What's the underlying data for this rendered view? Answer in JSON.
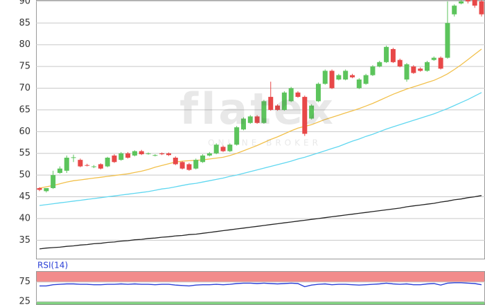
{
  "chart_data": [
    {
      "type": "candlestick",
      "categories": [
        null,
        null,
        null,
        null,
        null,
        null,
        null,
        null,
        null,
        null,
        null,
        null,
        null,
        null,
        null,
        null,
        null,
        null,
        null,
        null,
        null,
        null,
        null,
        null,
        null,
        null,
        null,
        null,
        null,
        null,
        null,
        null,
        null,
        null,
        null,
        null,
        null,
        null,
        null,
        null,
        null,
        null,
        null,
        null,
        null,
        null,
        null,
        null,
        null,
        null,
        null,
        null,
        null,
        null,
        null,
        null,
        null,
        null,
        null,
        null,
        null,
        null,
        null,
        null,
        null,
        null
      ],
      "open": [
        47,
        46.3,
        47,
        50.5,
        51,
        54,
        53.5,
        52.3,
        52,
        52.5,
        52,
        54.5,
        53.5,
        55,
        54.5,
        55.5,
        55,
        54.5,
        55,
        55,
        54,
        53,
        52.5,
        51.5,
        53,
        54.5,
        55,
        56.5,
        55.5,
        57,
        60.5,
        62,
        63.5,
        62,
        68,
        66,
        65,
        67,
        69,
        68,
        63,
        67,
        71,
        74,
        72,
        72,
        73,
        70,
        71,
        73,
        75,
        76,
        79,
        76.5,
        72,
        75,
        74.5,
        74,
        76.5,
        77,
        77,
        87,
        89.5,
        90.3,
        90.3,
        90
      ],
      "high": [
        47.2,
        47,
        51,
        52,
        54.5,
        54.7,
        53.8,
        52.6,
        52.3,
        52.7,
        54.2,
        54.8,
        55.3,
        55.3,
        55.7,
        55.8,
        55.2,
        54.8,
        55.2,
        55.2,
        54.3,
        53.2,
        52.8,
        53.8,
        54.8,
        55.3,
        57.3,
        56.8,
        57.3,
        61.3,
        63.3,
        63.8,
        63.8,
        67.3,
        71.5,
        66.3,
        69.3,
        70.3,
        69.3,
        68.3,
        66.3,
        71.3,
        74.3,
        74.3,
        73.3,
        74.3,
        73.3,
        72.3,
        73.3,
        75.3,
        76.3,
        79.8,
        79.3,
        76.8,
        75.8,
        75.3,
        74.8,
        76.3,
        77.3,
        77.3,
        90,
        89.3,
        90.3,
        90.5,
        90.5,
        90.3
      ],
      "low": [
        46.3,
        46,
        46.8,
        50.3,
        50.5,
        53,
        51.8,
        52,
        51.6,
        51.3,
        51.8,
        52.8,
        53.3,
        53.8,
        54.3,
        54.6,
        54.7,
        54.3,
        54.6,
        54.4,
        52.3,
        51.3,
        51,
        51.3,
        52.8,
        54.3,
        54.8,
        55.3,
        55.3,
        56.8,
        60.3,
        61.8,
        61.8,
        61.8,
        64.8,
        64.8,
        64.8,
        66.8,
        67.8,
        59,
        62.8,
        66.8,
        70.8,
        69.8,
        71.8,
        71.8,
        72.3,
        69.8,
        70.8,
        72.8,
        74.8,
        75.8,
        75.8,
        74.8,
        71.5,
        73.3,
        73.8,
        73.8,
        76.3,
        74.3,
        76.8,
        86.5,
        89.3,
        89.5,
        88.5,
        86.5
      ],
      "close": [
        46.6,
        47,
        50,
        51.5,
        54,
        54.1,
        52,
        52.2,
        52,
        51.5,
        54,
        53,
        55,
        54,
        55.5,
        54.8,
        55,
        54.6,
        54.8,
        54.6,
        52.5,
        51.5,
        51.2,
        53.5,
        54.5,
        55,
        57,
        55.5,
        57,
        61,
        63,
        63.5,
        62,
        67,
        65,
        65,
        69,
        70,
        68,
        59.5,
        66,
        71,
        74,
        70,
        73,
        74,
        72.5,
        72,
        73,
        75,
        76,
        79.5,
        76,
        75,
        75.5,
        73.5,
        74,
        76,
        77,
        74.5,
        85,
        89,
        90,
        90,
        89,
        87
      ],
      "up_color": "#5cc45c",
      "down_color": "#e84848",
      "lines": [
        {
          "color": "#f2c04a",
          "values": [
            47.0,
            47.3,
            47.6,
            48.0,
            48.4,
            48.7,
            48.9,
            49.1,
            49.3,
            49.5,
            49.7,
            49.9,
            50.1,
            50.3,
            50.6,
            50.9,
            51.3,
            51.8,
            52.2,
            52.6,
            53.0,
            53.2,
            53.3,
            53.4,
            53.5,
            53.7,
            53.9,
            54.1,
            54.5,
            55.0,
            55.6,
            56.2,
            56.8,
            57.5,
            58.2,
            58.8,
            59.5,
            60.2,
            60.8,
            61.2,
            61.6,
            62.2,
            62.8,
            63.3,
            63.8,
            64.3,
            64.8,
            65.3,
            65.9,
            66.5,
            67.2,
            67.9,
            68.6,
            69.2,
            69.8,
            70.3,
            70.8,
            71.3,
            71.8,
            72.5,
            73.3,
            74.3,
            75.4,
            76.6,
            77.8,
            79.0
          ]
        },
        {
          "color": "#5fd7f0",
          "values": [
            43.0,
            43.2,
            43.4,
            43.6,
            43.8,
            44.0,
            44.2,
            44.4,
            44.6,
            44.8,
            45.0,
            45.2,
            45.4,
            45.6,
            45.8,
            46.0,
            46.2,
            46.5,
            46.8,
            47.0,
            47.3,
            47.6,
            47.9,
            48.1,
            48.4,
            48.7,
            49.0,
            49.3,
            49.7,
            50.0,
            50.4,
            50.8,
            51.2,
            51.6,
            52.0,
            52.4,
            52.8,
            53.2,
            53.7,
            54.1,
            54.6,
            55.1,
            55.6,
            56.1,
            56.6,
            57.2,
            57.8,
            58.3,
            58.9,
            59.4,
            60.0,
            60.6,
            61.1,
            61.6,
            62.1,
            62.6,
            63.1,
            63.6,
            64.1,
            64.7,
            65.3,
            66.0,
            66.7,
            67.4,
            68.2,
            69.0
          ]
        },
        {
          "color": "#222222",
          "values": [
            33.0,
            33.2,
            33.3,
            33.4,
            33.6,
            33.7,
            33.9,
            34.0,
            34.2,
            34.3,
            34.5,
            34.6,
            34.8,
            34.9,
            35.1,
            35.2,
            35.4,
            35.5,
            35.7,
            35.8,
            36.0,
            36.1,
            36.3,
            36.4,
            36.6,
            36.8,
            37.0,
            37.2,
            37.4,
            37.6,
            37.8,
            38.0,
            38.2,
            38.4,
            38.6,
            38.8,
            39.0,
            39.2,
            39.4,
            39.6,
            39.8,
            40.0,
            40.2,
            40.4,
            40.6,
            40.8,
            41.0,
            41.2,
            41.4,
            41.6,
            41.8,
            42.0,
            42.2,
            42.4,
            42.7,
            42.9,
            43.1,
            43.3,
            43.5,
            43.8,
            44.0,
            44.3,
            44.5,
            44.8,
            45.0,
            45.3
          ]
        }
      ],
      "ylim": [
        30.6,
        90.3
      ],
      "yticks": [
        35,
        40,
        45,
        50,
        55,
        60,
        65,
        70,
        75,
        80,
        85,
        90
      ],
      "grid": true
    },
    {
      "type": "line",
      "title": "RSI(14)",
      "color": "#2a3fd6",
      "values": [
        65,
        65,
        68,
        69,
        70,
        70,
        69,
        69,
        68,
        68,
        69,
        69,
        70,
        69,
        70,
        69,
        69,
        68,
        69,
        69,
        67,
        66,
        65,
        67,
        68,
        68,
        69,
        68,
        69,
        71,
        72,
        72,
        71,
        72,
        71,
        70,
        71,
        72,
        71,
        63,
        67,
        69,
        70,
        68,
        69,
        69,
        68,
        67,
        68,
        69,
        70,
        72,
        70,
        69,
        70,
        68,
        68,
        70,
        71,
        67,
        72,
        73,
        73,
        72,
        71,
        68
      ],
      "bands": [
        {
          "from": 75,
          "to": 102.6,
          "color": "#f28c8c"
        },
        {
          "from": 16.4,
          "to": 25,
          "color": "#7fd07f"
        }
      ],
      "ylim": [
        16.4,
        102.6
      ],
      "yticks": [
        25,
        75
      ],
      "grid": true
    }
  ],
  "watermark": {
    "logo": "flatex",
    "tagline": "ONLINE BROKER"
  }
}
